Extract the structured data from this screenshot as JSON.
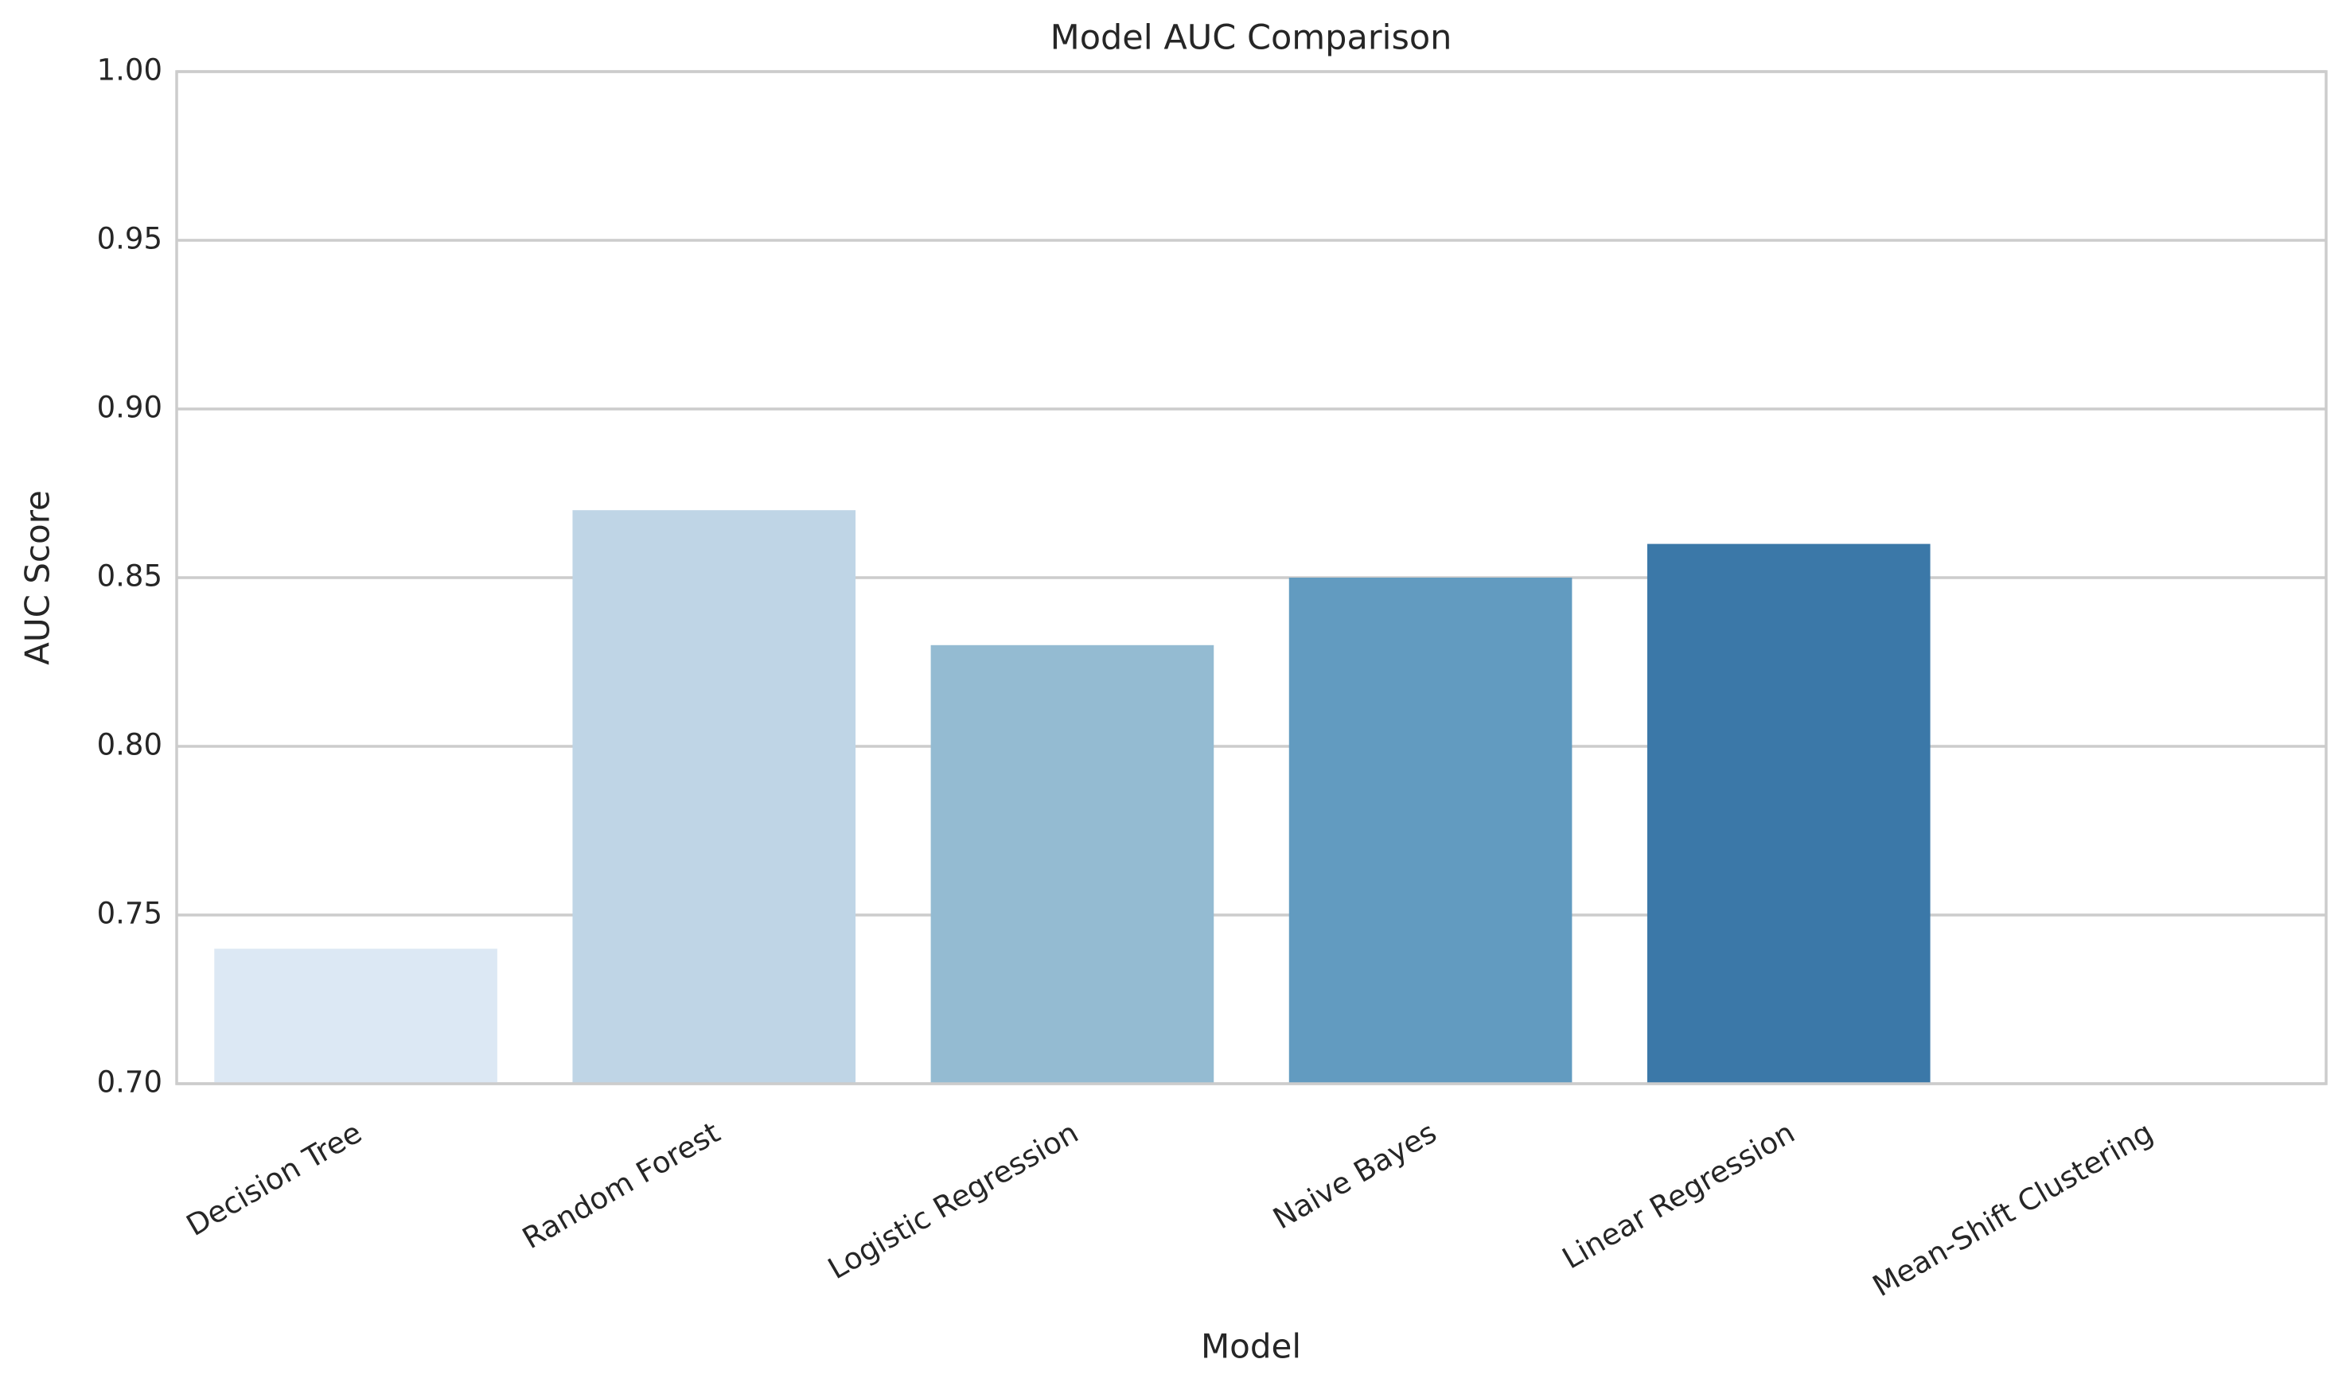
{
  "chart_data": {
    "type": "bar",
    "title": "Model AUC Comparison",
    "x_label": "Model",
    "y_label": "AUC Score",
    "categories": [
      "Decision Tree",
      "Random Forest",
      "Logistic Regression",
      "Naive Bayes",
      "Linear Regression",
      "Mean-Shift Clustering"
    ],
    "values": [
      0.74,
      0.87,
      0.83,
      0.85,
      0.86,
      null
    ],
    "colors": [
      "#dce8f4",
      "#bfd5e6",
      "#94bbd2",
      "#629bc0",
      "#3b78a8",
      "#1b5c9d"
    ],
    "ylim": [
      0.7,
      1.0
    ],
    "yticks": [
      {
        "value": 0.7,
        "label": "0.70"
      },
      {
        "value": 0.75,
        "label": "0.75"
      },
      {
        "value": 0.8,
        "label": "0.80"
      },
      {
        "value": 0.85,
        "label": "0.85"
      },
      {
        "value": 0.9,
        "label": "0.90"
      },
      {
        "value": 0.95,
        "label": "0.95"
      },
      {
        "value": 1.0,
        "label": "1.00"
      }
    ],
    "grid": true
  }
}
